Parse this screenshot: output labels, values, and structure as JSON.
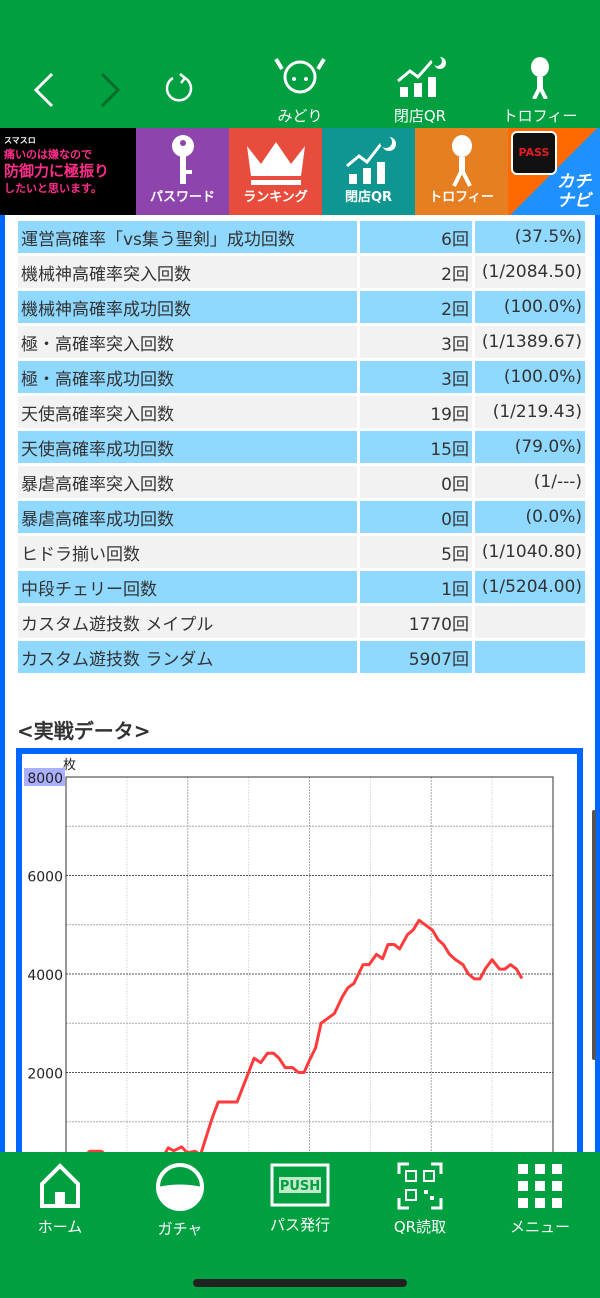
{
  "topbar": {
    "back_icon": "chevron-left-icon",
    "forward_icon": "chevron-right-icon",
    "reload_icon": "reload-icon",
    "items": [
      {
        "label": "みどり",
        "icon": "character-icon"
      },
      {
        "label": "閉店QR",
        "icon": "chart-moon-icon"
      },
      {
        "label": "トロフィー",
        "icon": "alien-icon"
      }
    ]
  },
  "banner": {
    "logo_lines": [
      "スマスロ",
      "痛いのは嫌なので",
      "防御力に極振り",
      "したいと思います。"
    ],
    "items": [
      {
        "label": "パスワード",
        "icon": "key-icon",
        "color": "#8e44ad"
      },
      {
        "label": "ランキング",
        "icon": "crown-icon",
        "color": "#e74c3c"
      },
      {
        "label": "閉店QR",
        "icon": "chart-moon-icon",
        "color": "#0f9690"
      },
      {
        "label": "トロフィー",
        "icon": "alien-icon",
        "color": "#e67e22"
      }
    ],
    "pass_badge": "PASS",
    "kachinavi": "カチナビ"
  },
  "table": {
    "rows": [
      {
        "label": "運営高確率「vs集う聖剣」成功回数",
        "count": "6回",
        "rate": "(37.5%)"
      },
      {
        "label": "機械神高確率突入回数",
        "count": "2回",
        "rate": "(1/2084.50)"
      },
      {
        "label": "機械神高確率成功回数",
        "count": "2回",
        "rate": "(100.0%)"
      },
      {
        "label": "極・高確率突入回数",
        "count": "3回",
        "rate": "(1/1389.67)"
      },
      {
        "label": "極・高確率成功回数",
        "count": "3回",
        "rate": "(100.0%)"
      },
      {
        "label": "天使高確率突入回数",
        "count": "19回",
        "rate": "(1/219.43)"
      },
      {
        "label": "天使高確率成功回数",
        "count": "15回",
        "rate": "(79.0%)"
      },
      {
        "label": "暴虐高確率突入回数",
        "count": "0回",
        "rate": "(1/---)"
      },
      {
        "label": "暴虐高確率成功回数",
        "count": "0回",
        "rate": "(0.0%)"
      },
      {
        "label": "ヒドラ揃い回数",
        "count": "5回",
        "rate": "(1/1040.80)"
      },
      {
        "label": "中段チェリー回数",
        "count": "1回",
        "rate": "(1/5204.00)"
      },
      {
        "label": "カスタム遊技数 メイプル",
        "count": "1770回",
        "rate": ""
      },
      {
        "label": "カスタム遊技数 ランダム",
        "count": "5907回",
        "rate": ""
      }
    ]
  },
  "section_title": "<実戦データ>",
  "chart_data": {
    "type": "line",
    "ylabel": "枚",
    "ylim": [
      0,
      8000
    ],
    "yticks": [
      "8000",
      "6000",
      "4000",
      "2000"
    ],
    "grid": true,
    "line_color": "#ff3b3b",
    "points": [
      [
        0,
        0
      ],
      [
        0.39,
        400
      ],
      [
        0.58,
        400
      ],
      [
        0.8,
        200
      ],
      [
        1.55,
        200
      ],
      [
        1.68,
        470
      ],
      [
        1.77,
        410
      ],
      [
        1.9,
        490
      ],
      [
        1.99,
        370
      ],
      [
        2.12,
        400
      ],
      [
        2.21,
        330
      ],
      [
        2.4,
        1070
      ],
      [
        2.5,
        1400
      ],
      [
        2.81,
        1400
      ],
      [
        3.09,
        2290
      ],
      [
        3.2,
        2200
      ],
      [
        3.31,
        2390
      ],
      [
        3.41,
        2390
      ],
      [
        3.5,
        2290
      ],
      [
        3.6,
        2100
      ],
      [
        3.72,
        2100
      ],
      [
        3.82,
        2000
      ],
      [
        3.91,
        2000
      ],
      [
        4.0,
        2250
      ],
      [
        4.1,
        2500
      ],
      [
        4.19,
        3000
      ],
      [
        4.41,
        3200
      ],
      [
        4.54,
        3540
      ],
      [
        4.63,
        3720
      ],
      [
        4.73,
        3810
      ],
      [
        4.88,
        4190
      ],
      [
        4.98,
        4190
      ],
      [
        5.1,
        4400
      ],
      [
        5.2,
        4310
      ],
      [
        5.29,
        4600
      ],
      [
        5.39,
        4600
      ],
      [
        5.48,
        4510
      ],
      [
        5.61,
        4800
      ],
      [
        5.7,
        4890
      ],
      [
        5.8,
        5090
      ],
      [
        6.02,
        4890
      ],
      [
        6.11,
        4700
      ],
      [
        6.2,
        4600
      ],
      [
        6.3,
        4400
      ],
      [
        6.39,
        4300
      ],
      [
        6.52,
        4190
      ],
      [
        6.61,
        4000
      ],
      [
        6.71,
        3900
      ],
      [
        6.8,
        3900
      ],
      [
        6.89,
        4110
      ],
      [
        7.0,
        4290
      ],
      [
        7.12,
        4100
      ],
      [
        7.21,
        4100
      ],
      [
        7.3,
        4190
      ],
      [
        7.4,
        4100
      ],
      [
        7.49,
        3910
      ]
    ],
    "xlim": [
      0,
      8
    ]
  },
  "bottomnav": [
    {
      "label": "ホーム",
      "icon": "home-icon"
    },
    {
      "label": "ガチャ",
      "icon": "gacha-icon"
    },
    {
      "label": "パス発行",
      "icon": "push-icon",
      "badge": "PUSH"
    },
    {
      "label": "QR読取",
      "icon": "qr-icon"
    },
    {
      "label": "メニュー",
      "icon": "grid-menu-icon"
    }
  ],
  "colors": {
    "green": "#00a040",
    "blue_border": "#0066ff",
    "row_blue": "#8fd8ff",
    "row_gray": "#f2f2f2"
  }
}
